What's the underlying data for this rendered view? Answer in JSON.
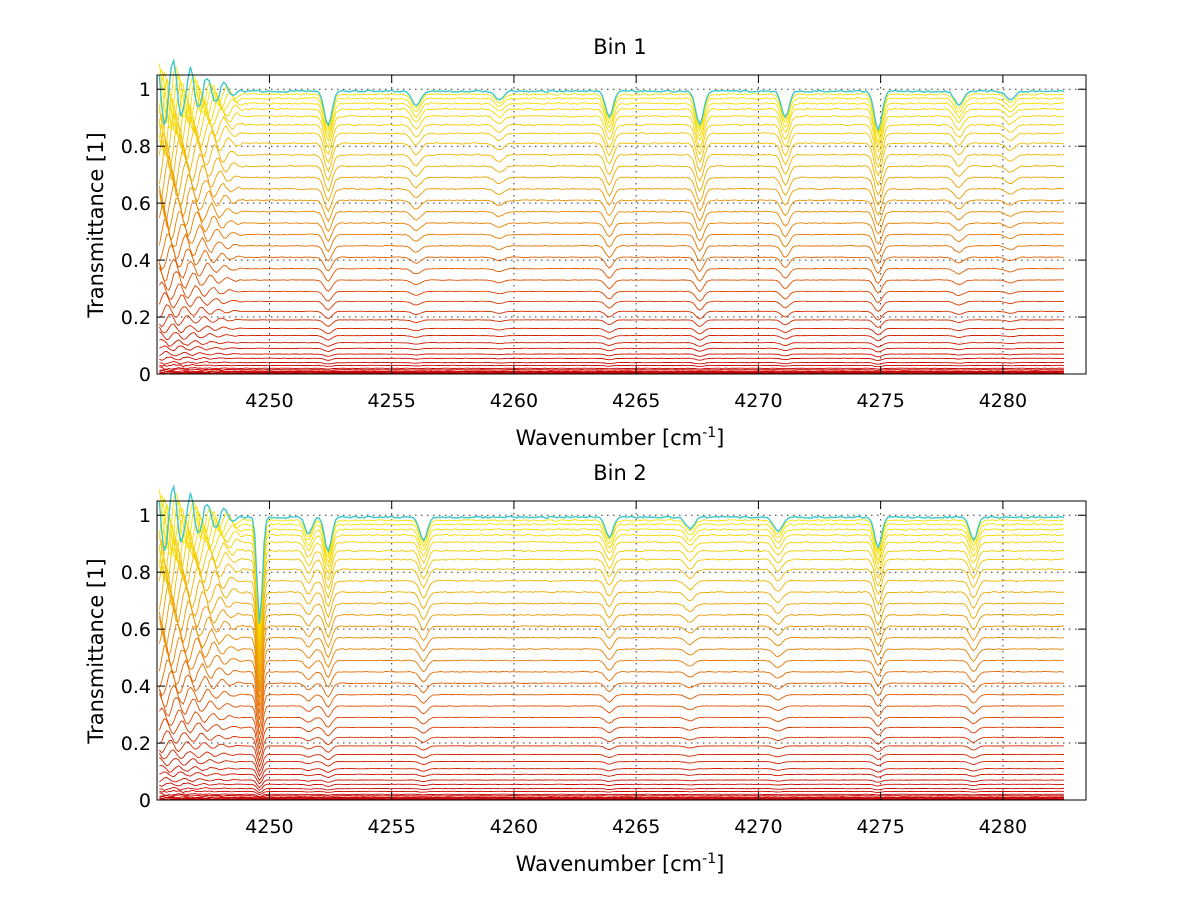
{
  "chart_data": [
    {
      "type": "line",
      "title": "Bin 1",
      "xlabel": "Wavenumber [cm",
      "xlabel_sup": "-1",
      "xlabel_close": "]",
      "ylabel": "Transmittance [1]",
      "xlim": [
        4245.4,
        4283.4
      ],
      "ylim": [
        0,
        1.05
      ],
      "x_range_data": [
        4245.5,
        4282.5
      ],
      "xticks": [
        4250,
        4255,
        4260,
        4265,
        4270,
        4275,
        4280
      ],
      "xtick_labels": [
        "4250",
        "4255",
        "4260",
        "4265",
        "4270",
        "4275",
        "4280"
      ],
      "yticks": [
        0,
        0.2,
        0.4,
        0.6,
        0.8,
        1
      ],
      "ytick_labels": [
        "0",
        "0.2",
        "0.4",
        "0.6",
        "0.8",
        "1"
      ],
      "grid": true,
      "series_count": 40,
      "series_levels": [
        0.0,
        0.002,
        0.004,
        0.007,
        0.01,
        0.015,
        0.02,
        0.03,
        0.04,
        0.055,
        0.07,
        0.09,
        0.11,
        0.135,
        0.16,
        0.19,
        0.22,
        0.255,
        0.29,
        0.33,
        0.37,
        0.41,
        0.45,
        0.49,
        0.53,
        0.57,
        0.61,
        0.65,
        0.69,
        0.73,
        0.77,
        0.81,
        0.845,
        0.875,
        0.905,
        0.93,
        0.95,
        0.968,
        0.982,
        0.993
      ],
      "absorption_lines": [
        {
          "x": 4252.4,
          "depth": 0.12,
          "width": 0.22
        },
        {
          "x": 4256.0,
          "depth": 0.05,
          "width": 0.25
        },
        {
          "x": 4259.4,
          "depth": 0.03,
          "width": 0.25
        },
        {
          "x": 4263.9,
          "depth": 0.09,
          "width": 0.22
        },
        {
          "x": 4267.6,
          "depth": 0.12,
          "width": 0.22
        },
        {
          "x": 4271.1,
          "depth": 0.09,
          "width": 0.22
        },
        {
          "x": 4274.9,
          "depth": 0.14,
          "width": 0.22
        },
        {
          "x": 4278.2,
          "depth": 0.05,
          "width": 0.25
        },
        {
          "x": 4280.3,
          "depth": 0.03,
          "width": 0.25
        }
      ],
      "color_low": "#c80000",
      "color_mid": "#e87800",
      "color_high": "#f8e800",
      "top_trace_color": "#3cc8c8"
    },
    {
      "type": "line",
      "title": "Bin 2",
      "xlabel": "Wavenumber [cm",
      "xlabel_sup": "-1",
      "xlabel_close": "]",
      "ylabel": "Transmittance [1]",
      "xlim": [
        4245.4,
        4283.4
      ],
      "ylim": [
        0,
        1.05
      ],
      "x_range_data": [
        4245.5,
        4282.5
      ],
      "xticks": [
        4250,
        4255,
        4260,
        4265,
        4270,
        4275,
        4280
      ],
      "xtick_labels": [
        "4250",
        "4255",
        "4260",
        "4265",
        "4270",
        "4275",
        "4280"
      ],
      "yticks": [
        0,
        0.2,
        0.4,
        0.6,
        0.8,
        1
      ],
      "ytick_labels": [
        "0",
        "0.2",
        "0.4",
        "0.6",
        "0.8",
        "1"
      ],
      "grid": true,
      "series_count": 40,
      "series_levels": [
        0.0,
        0.002,
        0.004,
        0.007,
        0.01,
        0.015,
        0.02,
        0.03,
        0.04,
        0.055,
        0.07,
        0.09,
        0.11,
        0.135,
        0.16,
        0.19,
        0.22,
        0.255,
        0.29,
        0.33,
        0.37,
        0.41,
        0.45,
        0.49,
        0.53,
        0.57,
        0.61,
        0.65,
        0.69,
        0.73,
        0.77,
        0.81,
        0.845,
        0.875,
        0.905,
        0.93,
        0.95,
        0.968,
        0.982,
        0.993
      ],
      "absorption_lines": [
        {
          "x": 4249.6,
          "depth": 0.38,
          "width": 0.15
        },
        {
          "x": 4251.6,
          "depth": 0.06,
          "width": 0.2
        },
        {
          "x": 4252.4,
          "depth": 0.12,
          "width": 0.2
        },
        {
          "x": 4256.3,
          "depth": 0.08,
          "width": 0.22
        },
        {
          "x": 4263.9,
          "depth": 0.07,
          "width": 0.22
        },
        {
          "x": 4267.2,
          "depth": 0.04,
          "width": 0.25
        },
        {
          "x": 4270.8,
          "depth": 0.05,
          "width": 0.25
        },
        {
          "x": 4274.9,
          "depth": 0.11,
          "width": 0.2
        },
        {
          "x": 4278.8,
          "depth": 0.08,
          "width": 0.22
        }
      ],
      "color_low": "#c80000",
      "color_mid": "#e87800",
      "color_high": "#f8e800",
      "top_trace_color": "#3cc8c8"
    }
  ]
}
